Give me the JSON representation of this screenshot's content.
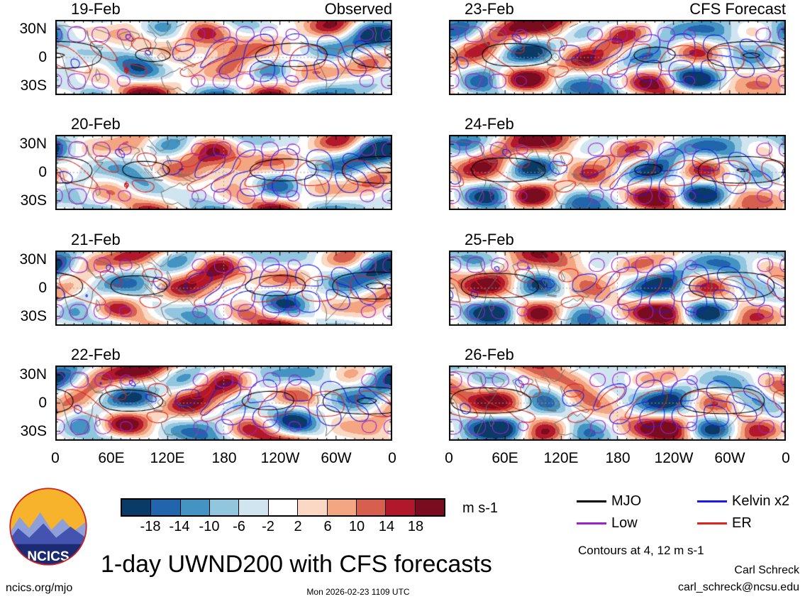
{
  "title": "1-day UWND200 with CFS forecasts",
  "branding": {
    "logo_text": "NCICS"
  },
  "footer": {
    "left": "ncics.org/mjo",
    "center": "Mon 2026-02-23 1109 UTC",
    "right_name": "Carl Schreck",
    "right_email": "carl_schreck@ncsu.edu"
  },
  "chart_data": {
    "type": "heatmap",
    "subtype": "filled-contour-longitude-latitude-maps",
    "variable": "UWND200 anomaly",
    "units": "m s-1",
    "columns": [
      {
        "title": "Observed",
        "dates": [
          "19-Feb",
          "20-Feb",
          "21-Feb",
          "22-Feb"
        ]
      },
      {
        "title": "CFS Forecast",
        "dates": [
          "23-Feb",
          "24-Feb",
          "25-Feb",
          "26-Feb"
        ]
      }
    ],
    "x": {
      "label": "longitude",
      "ticks": [
        "0",
        "60E",
        "120E",
        "180",
        "120W",
        "60W",
        "0"
      ],
      "range_deg": [
        0,
        360
      ]
    },
    "y": {
      "label": "latitude",
      "ticks": [
        "30N",
        "0",
        "30S"
      ],
      "range_deg": [
        -40,
        40
      ]
    },
    "fill_levels": [
      -18,
      -14,
      -10,
      -6,
      -2,
      2,
      6,
      10,
      14,
      18
    ],
    "fill_colors": [
      "#0a3a66",
      "#2166ac",
      "#4393c3",
      "#92c5de",
      "#d1e5f0",
      "#ffffff",
      "#fbd8c3",
      "#f4a582",
      "#d6604d",
      "#b2182b",
      "#7a0c20"
    ],
    "overlays": [
      {
        "name": "MJO",
        "color": "#000000"
      },
      {
        "name": "Low",
        "color": "#a020d0"
      },
      {
        "name": "Kelvin x2",
        "color": "#1a1aee"
      },
      {
        "name": "ER",
        "color": "#e32219"
      }
    ],
    "contours_note": "Contours at 4, 12 m s-1",
    "grid": "dashed gray equator and dateline reference lines"
  }
}
